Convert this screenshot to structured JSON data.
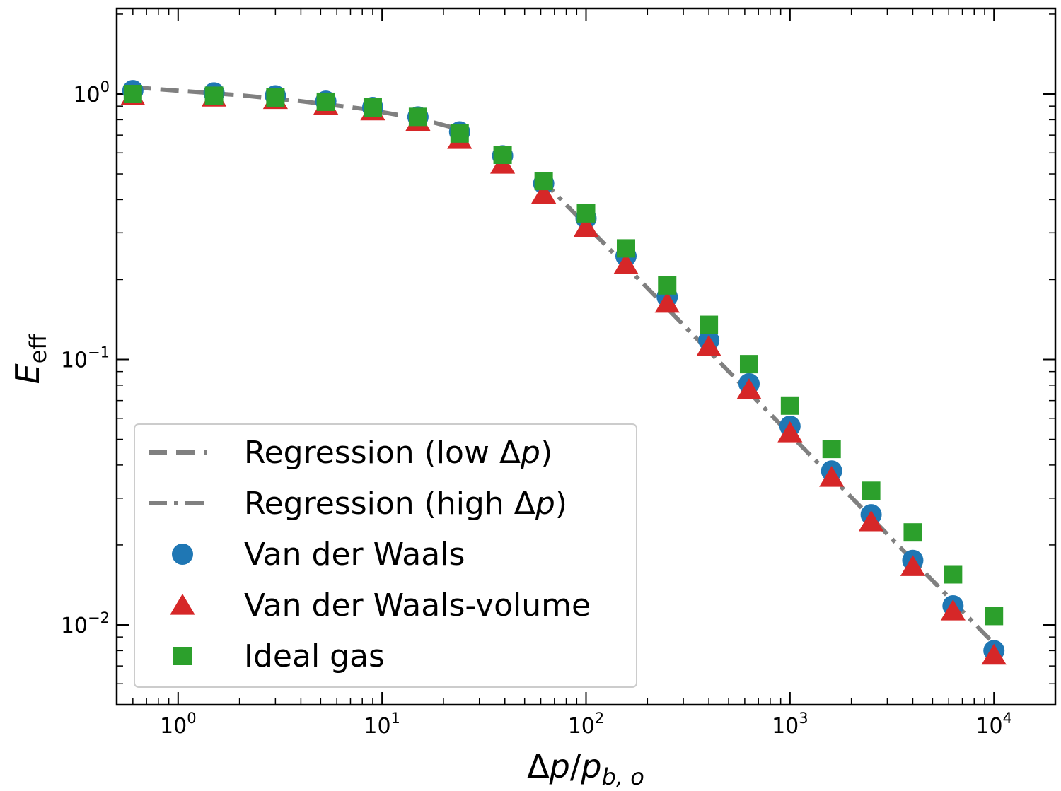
{
  "chart_data": {
    "type": "scatter",
    "xscale": "log",
    "yscale": "log",
    "xlim": [
      0.5,
      20000
    ],
    "ylim": [
      0.005,
      2.1
    ],
    "xlabel": "Δp/p_{b,o}",
    "xlabel_parts": [
      "Δ",
      "p",
      "/",
      "p",
      "b, o"
    ],
    "ylabel_parts": [
      "E",
      "eff"
    ],
    "x_ticks": [
      {
        "value": 1,
        "base": "10",
        "exp": "0"
      },
      {
        "value": 10,
        "base": "10",
        "exp": "1"
      },
      {
        "value": 100,
        "base": "10",
        "exp": "2"
      },
      {
        "value": 1000,
        "base": "10",
        "exp": "3"
      },
      {
        "value": 10000,
        "base": "10",
        "exp": "4"
      }
    ],
    "y_ticks": [
      {
        "value": 1,
        "base": "10",
        "exp": "0"
      },
      {
        "value": 0.1,
        "base": "10",
        "exp": "−1"
      },
      {
        "value": 0.01,
        "base": "10",
        "exp": "−2"
      }
    ],
    "x": [
      0.6,
      1.5,
      3.0,
      5.3,
      9.0,
      15,
      24,
      39,
      62,
      100,
      157,
      250,
      400,
      630,
      1000,
      1600,
      2500,
      4000,
      6300,
      10000
    ],
    "series": [
      {
        "name": "Van der Waals",
        "marker": "circle",
        "color": "#1f77b4",
        "values": [
          1.03,
          1.01,
          0.985,
          0.94,
          0.89,
          0.82,
          0.72,
          0.585,
          0.46,
          0.34,
          0.245,
          0.172,
          0.118,
          0.081,
          0.056,
          0.038,
          0.026,
          0.0175,
          0.0118,
          0.008
        ]
      },
      {
        "name": "Van der Waals-volume",
        "marker": "triangle",
        "color": "#d62728",
        "values": [
          0.985,
          0.975,
          0.955,
          0.91,
          0.865,
          0.79,
          0.675,
          0.545,
          0.42,
          0.315,
          0.228,
          0.163,
          0.112,
          0.077,
          0.053,
          0.036,
          0.0245,
          0.0166,
          0.0113,
          0.0077
        ]
      },
      {
        "name": "Ideal gas",
        "marker": "square",
        "color": "#2ca02c",
        "values": [
          1.0,
          0.985,
          0.97,
          0.935,
          0.89,
          0.82,
          0.71,
          0.59,
          0.47,
          0.355,
          0.262,
          0.19,
          0.135,
          0.096,
          0.067,
          0.046,
          0.032,
          0.0223,
          0.0155,
          0.0108
        ]
      }
    ],
    "regression_low": {
      "name": "Regression (low Δp)",
      "style": "dashed",
      "color": "#808080",
      "x": [
        0.6,
        1,
        2,
        4,
        8,
        15,
        25
      ],
      "y": [
        1.06,
        1.03,
        0.99,
        0.94,
        0.88,
        0.81,
        0.73
      ]
    },
    "regression_high": {
      "name": "Regression (high Δp)",
      "style": "dashdot",
      "color": "#808080",
      "x": [
        60,
        10000
      ],
      "y": [
        0.48,
        0.0085
      ]
    },
    "legend": {
      "placement": "lower-left",
      "entries": [
        {
          "prefix": "Regression (low Δ",
          "italic": "p",
          "suffix": ")",
          "kind": "dashed"
        },
        {
          "prefix": "Regression (high Δ",
          "italic": "p",
          "suffix": ")",
          "kind": "dashdot"
        },
        {
          "prefix": "Van der Waals",
          "italic": "",
          "suffix": "",
          "kind": "circle"
        },
        {
          "prefix": "Van der Waals-volume",
          "italic": "",
          "suffix": "",
          "kind": "triangle"
        },
        {
          "prefix": "Ideal gas",
          "italic": "",
          "suffix": "",
          "kind": "square"
        }
      ]
    },
    "grid": false
  }
}
